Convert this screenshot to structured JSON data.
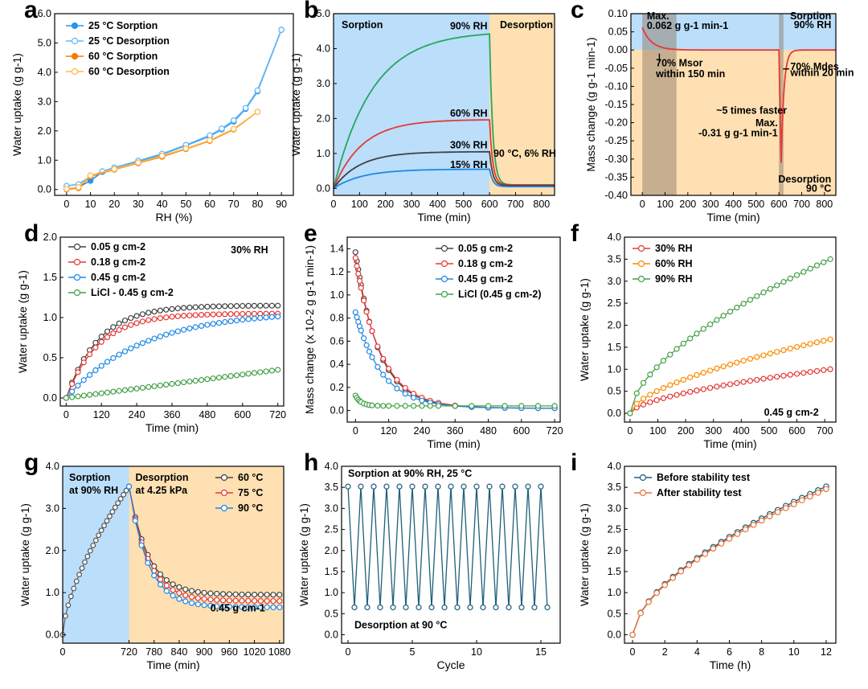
{
  "chart_data": [
    {
      "panel": "a",
      "type": "line",
      "xlabel": "RH (%)",
      "ylabel": "Water uptake (g g-1)",
      "xlim": [
        -5,
        95
      ],
      "ylim": [
        -0.2,
        6.0
      ],
      "xticks": [
        0,
        10,
        20,
        30,
        40,
        50,
        60,
        70,
        80,
        90
      ],
      "yticks": [
        0.0,
        1.0,
        2.0,
        3.0,
        4.0,
        5.0,
        6.0
      ],
      "legend": "top-left",
      "series": [
        {
          "name": "25 °C Sorption",
          "color": "#2196f3",
          "marker": "filled",
          "x": [
            0,
            5,
            10,
            15,
            20,
            30,
            40,
            50,
            60,
            65,
            70,
            75,
            80,
            90
          ],
          "y": [
            0.02,
            0.08,
            0.3,
            0.6,
            0.72,
            0.95,
            1.2,
            1.5,
            1.82,
            2.05,
            2.32,
            2.75,
            3.35,
            5.45
          ]
        },
        {
          "name": "25 °C Desorption",
          "color": "#64b5f6",
          "marker": "open",
          "x": [
            0,
            5,
            10,
            15,
            20,
            30,
            40,
            50,
            60,
            65,
            70,
            75,
            80,
            90
          ],
          "y": [
            0.12,
            0.18,
            0.45,
            0.62,
            0.75,
            0.98,
            1.22,
            1.52,
            1.85,
            2.08,
            2.36,
            2.78,
            3.38,
            5.45
          ]
        },
        {
          "name": "60 °C Sorption",
          "color": "#f57c00",
          "marker": "filled",
          "x": [
            0,
            5,
            10,
            20,
            30,
            40,
            50,
            60,
            70,
            80
          ],
          "y": [
            0.0,
            0.05,
            0.45,
            0.68,
            0.9,
            1.12,
            1.38,
            1.66,
            2.05,
            2.65
          ]
        },
        {
          "name": "60 °C Desorption",
          "color": "#ffb74d",
          "marker": "open",
          "x": [
            0,
            5,
            10,
            20,
            30,
            40,
            50,
            60,
            70,
            80
          ],
          "y": [
            0.02,
            0.08,
            0.48,
            0.7,
            0.92,
            1.15,
            1.4,
            1.68,
            2.07,
            2.65
          ]
        }
      ]
    },
    {
      "panel": "b",
      "type": "line",
      "xlabel": "Time (min)",
      "ylabel": "Water uptake (g g-1)",
      "xlim": [
        0,
        850
      ],
      "ylim": [
        -0.2,
        5.0
      ],
      "xticks": [
        0,
        100,
        200,
        300,
        400,
        500,
        600,
        700,
        800
      ],
      "yticks": [
        0.0,
        1.0,
        2.0,
        3.0,
        4.0,
        5.0
      ],
      "regions": [
        {
          "label": "Sorption",
          "from": 0,
          "to": 600,
          "color": "#bbdefb"
        },
        {
          "label": "Desorption",
          "from": 600,
          "to": 850,
          "color": "#ffe0b2"
        }
      ],
      "annotations": [
        {
          "text": "90% RH",
          "x": 520,
          "y": 4.55
        },
        {
          "text": "60% RH",
          "x": 520,
          "y": 2.05
        },
        {
          "text": "30% RH",
          "x": 520,
          "y": 1.15
        },
        {
          "text": "15% RH",
          "x": 520,
          "y": 0.58
        },
        {
          "text": "90 °C, 6% RH",
          "x": 615,
          "y": 0.9
        }
      ],
      "series": [
        {
          "name": "90% RH",
          "color": "#26a65b",
          "tau": 150,
          "plateau": 4.5,
          "final": 0.1
        },
        {
          "name": "60% RH",
          "color": "#e53935",
          "tau": 110,
          "plateau": 1.97,
          "final": 0.1
        },
        {
          "name": "30% RH",
          "color": "#424242",
          "tau": 100,
          "plateau": 1.05,
          "final": 0.08
        },
        {
          "name": "15% RH",
          "color": "#1e88e5",
          "tau": 110,
          "plateau": 0.55,
          "final": 0.05
        }
      ]
    },
    {
      "panel": "c",
      "type": "line",
      "xlabel": "Time (min)",
      "ylabel": "Mass change (g g-1 min-1)",
      "xlim": [
        -50,
        850
      ],
      "ylim": [
        -0.4,
        0.1
      ],
      "xticks": [
        0,
        100,
        200,
        300,
        400,
        500,
        600,
        700,
        800
      ],
      "yticks": [
        0.1,
        0.05,
        0.0,
        -0.05,
        -0.1,
        -0.15,
        -0.2,
        -0.25,
        -0.3,
        -0.35,
        -0.4
      ],
      "annotations": [
        {
          "text": "Max.",
          "x": 20,
          "y": 0.085
        },
        {
          "text": "0.062 g g-1 min-1",
          "x": 20,
          "y": 0.058
        },
        {
          "text": "70% Msor",
          "x": 60,
          "y": -0.045
        },
        {
          "text": "within 150 min",
          "x": 60,
          "y": -0.075
        },
        {
          "text": "~5 times faster",
          "x": 480,
          "y": -0.175
        },
        {
          "text": "Max.",
          "x": 595,
          "y": -0.21
        },
        {
          "text": "-0.31 g g-1 min-1",
          "x": 595,
          "y": -0.237
        },
        {
          "text": "70% Mdes",
          "x": 650,
          "y": -0.055
        },
        {
          "text": "within 20 min",
          "x": 650,
          "y": -0.072
        },
        {
          "text": "Sorption",
          "x": 830,
          "y": 0.085
        },
        {
          "text": "90% RH",
          "x": 830,
          "y": 0.06
        },
        {
          "text": "Desorption",
          "x": 830,
          "y": -0.365
        },
        {
          "text": "90 °C",
          "x": 830,
          "y": -0.39
        }
      ],
      "series": [
        {
          "name": "mass change",
          "color": "#e53935"
        }
      ]
    },
    {
      "panel": "d",
      "type": "line",
      "xlabel": "Time (min)",
      "ylabel": "Water uptake (g g-1)",
      "xlim": [
        -20,
        740
      ],
      "ylim": [
        -0.1,
        2.0
      ],
      "xticks": [
        0,
        120,
        240,
        360,
        480,
        600,
        720
      ],
      "yticks": [
        0.0,
        0.5,
        1.0,
        1.5,
        2.0
      ],
      "annotations": [
        {
          "text": "30% RH",
          "x": 560,
          "y": 1.8
        }
      ],
      "legend": "top-left",
      "series": [
        {
          "name": "0.05 g cm-2",
          "color": "#424242",
          "plateau": 1.15,
          "tau": 110
        },
        {
          "name": "0.18 g cm-2",
          "color": "#e53935",
          "plateau": 1.05,
          "tau": 110
        },
        {
          "name": "0.45 g cm-2",
          "color": "#1e88e5",
          "plateau": 1.08,
          "tau": 260
        },
        {
          "name": "LiCl - 0.45 g cm-2",
          "color": "#43a047",
          "plateau": 0.35,
          "tau": 0
        }
      ]
    },
    {
      "panel": "e",
      "type": "line",
      "xlabel": "Time (min)",
      "ylabel": "Mass change (x 10-2 g g-1 min-1)",
      "xlim": [
        -30,
        740
      ],
      "ylim": [
        -0.1,
        1.5
      ],
      "xticks": [
        0,
        120,
        240,
        360,
        480,
        600,
        720
      ],
      "yticks": [
        0.0,
        0.2,
        0.4,
        0.6,
        0.8,
        1.0,
        1.2,
        1.4
      ],
      "legend": "top-right",
      "series": [
        {
          "name": "0.05 g cm-2",
          "color": "#424242",
          "start": 1.37,
          "tau": 85
        },
        {
          "name": "0.18 g cm-2",
          "color": "#e53935",
          "start": 1.32,
          "tau": 90
        },
        {
          "name": "0.45 g cm-2",
          "color": "#1e88e5",
          "start": 0.85,
          "tau": 95
        },
        {
          "name": "LiCl (0.45 g cm-2)",
          "color": "#43a047",
          "start": 0.13,
          "tau": 0
        }
      ]
    },
    {
      "panel": "f",
      "type": "line",
      "xlabel": "Time (min)",
      "ylabel": "Water uptake (g g-1)",
      "xlim": [
        -20,
        740
      ],
      "ylim": [
        -0.2,
        4.0
      ],
      "xticks": [
        0,
        100,
        200,
        300,
        400,
        500,
        600,
        700
      ],
      "yticks": [
        0.0,
        0.5,
        1.0,
        1.5,
        2.0,
        2.5,
        3.0,
        3.5,
        4.0
      ],
      "annotations": [
        {
          "text": "0.45 g cm-2",
          "x": 580,
          "y": -0.05
        }
      ],
      "legend": "top-left",
      "series": [
        {
          "name": "30% RH",
          "color": "#e53935",
          "final": 1.0
        },
        {
          "name": "60% RH",
          "color": "#fb8c00",
          "final": 1.68
        },
        {
          "name": "90% RH",
          "color": "#43a047",
          "final": 3.5
        }
      ]
    },
    {
      "panel": "g",
      "type": "line",
      "xlabel": "Time (min)",
      "ylabel": "Water uptake (g g-1)",
      "xlim": [
        0,
        1090
      ],
      "ylim": [
        -0.2,
        4.0
      ],
      "xticks": [
        0,
        720,
        780,
        840,
        900,
        960,
        1020,
        1080
      ],
      "yticks": [
        0.0,
        1.0,
        2.0,
        3.0,
        4.0
      ],
      "regions": [
        {
          "label": "Sorption at 90% RH",
          "from": 0,
          "to": 720,
          "color": "#bbdefb"
        },
        {
          "label": "Desorption at 4.25 kPa",
          "from": 720,
          "to": 1090,
          "color": "#ffe0b2"
        }
      ],
      "annotations": [
        {
          "text": "0.45 g cm-1",
          "x": 980,
          "y": 0.55
        }
      ],
      "legend": "top-right",
      "series": [
        {
          "name": "60 °C",
          "color": "#424242",
          "final": 0.95
        },
        {
          "name": "75 °C",
          "color": "#e53935",
          "final": 0.8
        },
        {
          "name": "90 °C",
          "color": "#1e88e5",
          "final": 0.65
        }
      ]
    },
    {
      "panel": "h",
      "type": "line",
      "xlabel": "Cycle",
      "ylabel": "Water uptake (g g-1)",
      "xlim": [
        -0.5,
        16.5
      ],
      "ylim": [
        -0.2,
        4.0
      ],
      "xticks": [
        0,
        5,
        10,
        15
      ],
      "yticks": [
        0.0,
        0.5,
        1.0,
        1.5,
        2.0,
        2.5,
        3.0,
        3.5,
        4.0
      ],
      "annotations": [
        {
          "text": "Sorption at 90% RH, 25 °C",
          "x": 0,
          "y": 3.75
        },
        {
          "text": "Desorption at 90 °C",
          "x": 0.5,
          "y": 0.15
        }
      ],
      "series": [
        {
          "name": "cycles",
          "color": "#1f5f7a",
          "high": 3.52,
          "low": 0.65,
          "cycles": 16
        }
      ]
    },
    {
      "panel": "i",
      "type": "line",
      "xlabel": "Time (h)",
      "ylabel": "Water uptake (g g-1)",
      "xlim": [
        -0.5,
        12.6
      ],
      "ylim": [
        -0.2,
        4.0
      ],
      "xticks": [
        0,
        2,
        4,
        6,
        8,
        10,
        12
      ],
      "yticks": [
        0.0,
        0.5,
        1.0,
        1.5,
        2.0,
        2.5,
        3.0,
        3.5,
        4.0
      ],
      "legend": "top-left",
      "series": [
        {
          "name": "Before stability test",
          "color": "#1f5f7a",
          "final": 3.52
        },
        {
          "name": "After stability test",
          "color": "#e8743b",
          "final": 3.46
        }
      ]
    }
  ]
}
